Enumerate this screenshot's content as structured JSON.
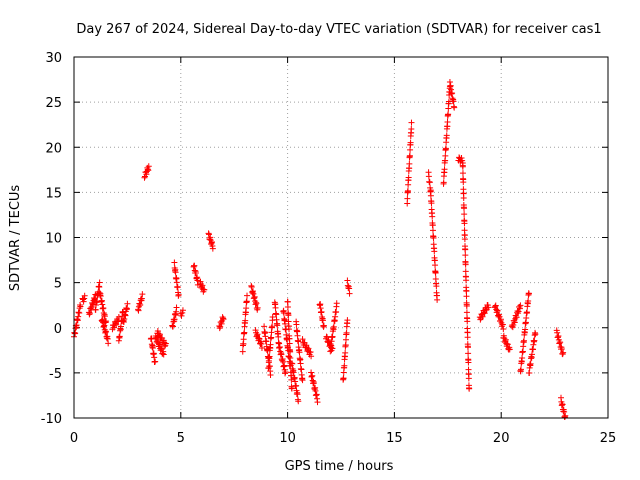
{
  "chart_data": {
    "type": "scatter",
    "title": "Day 267 of 2024, Sidereal Day-to-day VTEC variation (SDTVAR) for receiver cas1",
    "xlabel": "GPS time / hours",
    "ylabel": "SDTVAR / TECUs",
    "xlim": [
      0,
      25
    ],
    "ylim": [
      -10,
      30
    ],
    "xticks": [
      0,
      5,
      10,
      15,
      20,
      25
    ],
    "yticks": [
      -10,
      -5,
      0,
      5,
      10,
      15,
      20,
      25,
      30
    ],
    "grid": true,
    "marker": "+",
    "color": "#ff0000",
    "segments": [
      {
        "x": [
          0.0,
          0.3
        ],
        "y": [
          -1,
          2.5
        ]
      },
      {
        "x": [
          0.4,
          0.5
        ],
        "y": [
          3,
          3.3
        ]
      },
      {
        "x": [
          0.7,
          1.0
        ],
        "y": [
          1.5,
          3.5
        ]
      },
      {
        "x": [
          1.0,
          1.2
        ],
        "y": [
          2,
          5
        ]
      },
      {
        "x": [
          1.2,
          1.5
        ],
        "y": [
          4,
          0.5
        ]
      },
      {
        "x": [
          1.3,
          1.6
        ],
        "y": [
          1,
          -1.5
        ]
      },
      {
        "x": [
          1.8,
          2.1
        ],
        "y": [
          0,
          1
        ]
      },
      {
        "x": [
          2.1,
          2.3
        ],
        "y": [
          -1.5,
          2
        ]
      },
      {
        "x": [
          2.3,
          2.5
        ],
        "y": [
          0.5,
          2.5
        ]
      },
      {
        "x": [
          3.0,
          3.2
        ],
        "y": [
          2,
          3.5
        ]
      },
      {
        "x": [
          3.3,
          3.5
        ],
        "y": [
          16.8,
          17.8
        ]
      },
      {
        "x": [
          3.6,
          3.8
        ],
        "y": [
          -1,
          -4
        ]
      },
      {
        "x": [
          3.8,
          4.2
        ],
        "y": [
          -1,
          -3
        ]
      },
      {
        "x": [
          3.9,
          4.3
        ],
        "y": [
          -0.5,
          -2
        ]
      },
      {
        "x": [
          4.6,
          4.8
        ],
        "y": [
          0,
          2
        ]
      },
      {
        "x": [
          4.7,
          4.9
        ],
        "y": [
          7,
          3.5
        ]
      },
      {
        "x": [
          5.0,
          5.1
        ],
        "y": [
          1.5,
          1.7
        ]
      },
      {
        "x": [
          5.6,
          5.8
        ],
        "y": [
          7,
          5
        ]
      },
      {
        "x": [
          5.9,
          6.1
        ],
        "y": [
          5,
          4
        ]
      },
      {
        "x": [
          6.3,
          6.5
        ],
        "y": [
          10.3,
          9
        ]
      },
      {
        "x": [
          6.8,
          7.0
        ],
        "y": [
          0,
          1.2
        ]
      },
      {
        "x": [
          7.9,
          8.1
        ],
        "y": [
          -2.5,
          3.5
        ]
      },
      {
        "x": [
          8.3,
          8.6
        ],
        "y": [
          4.5,
          2
        ]
      },
      {
        "x": [
          8.5,
          8.8
        ],
        "y": [
          -0.5,
          -2
        ]
      },
      {
        "x": [
          8.9,
          9.2
        ],
        "y": [
          0,
          -5
        ]
      },
      {
        "x": [
          9.1,
          9.3
        ],
        "y": [
          -4.5,
          1
        ]
      },
      {
        "x": [
          9.4,
          9.6
        ],
        "y": [
          3,
          -2
        ]
      },
      {
        "x": [
          9.6,
          9.9
        ],
        "y": [
          -2,
          -5
        ]
      },
      {
        "x": [
          9.8,
          10.1
        ],
        "y": [
          2,
          -4
        ]
      },
      {
        "x": [
          10.0,
          10.2
        ],
        "y": [
          3,
          -7
        ]
      },
      {
        "x": [
          10.2,
          10.5
        ],
        "y": [
          -4,
          -8
        ]
      },
      {
        "x": [
          10.4,
          10.7
        ],
        "y": [
          0.5,
          -6
        ]
      },
      {
        "x": [
          10.7,
          11.1
        ],
        "y": [
          -1.5,
          -3
        ]
      },
      {
        "x": [
          11.1,
          11.4
        ],
        "y": [
          -5,
          -8
        ]
      },
      {
        "x": [
          11.5,
          11.7
        ],
        "y": [
          2.8,
          0
        ]
      },
      {
        "x": [
          11.8,
          12.1
        ],
        "y": [
          -1,
          -2.5
        ]
      },
      {
        "x": [
          12.0,
          12.3
        ],
        "y": [
          -2.5,
          2.5
        ]
      },
      {
        "x": [
          12.6,
          12.8
        ],
        "y": [
          -6,
          1
        ]
      },
      {
        "x": [
          12.8,
          12.9
        ],
        "y": [
          5,
          4
        ]
      },
      {
        "x": [
          15.6,
          15.8
        ],
        "y": [
          14,
          22.5
        ]
      },
      {
        "x": [
          16.6,
          16.7
        ],
        "y": [
          17,
          15
        ]
      },
      {
        "x": [
          16.7,
          17.0
        ],
        "y": [
          15,
          3
        ]
      },
      {
        "x": [
          17.3,
          17.6
        ],
        "y": [
          16,
          27
        ]
      },
      {
        "x": [
          17.6,
          17.8
        ],
        "y": [
          27,
          24.5
        ]
      },
      {
        "x": [
          18.0,
          18.2
        ],
        "y": [
          18.7,
          18.5
        ]
      },
      {
        "x": [
          18.2,
          18.5
        ],
        "y": [
          18,
          -7
        ]
      },
      {
        "x": [
          19.0,
          19.4
        ],
        "y": [
          1,
          2.5
        ]
      },
      {
        "x": [
          19.7,
          20.1
        ],
        "y": [
          2.5,
          0
        ]
      },
      {
        "x": [
          20.1,
          20.4
        ],
        "y": [
          -1,
          -2.5
        ]
      },
      {
        "x": [
          20.5,
          20.9
        ],
        "y": [
          0,
          2.5
        ]
      },
      {
        "x": [
          20.9,
          21.3
        ],
        "y": [
          -5,
          4
        ]
      },
      {
        "x": [
          21.3,
          21.6
        ],
        "y": [
          -5,
          -0.5
        ]
      },
      {
        "x": [
          22.6,
          22.9
        ],
        "y": [
          -0.5,
          -3
        ]
      },
      {
        "x": [
          22.8,
          23.0
        ],
        "y": [
          -8,
          -10
        ]
      }
    ]
  }
}
